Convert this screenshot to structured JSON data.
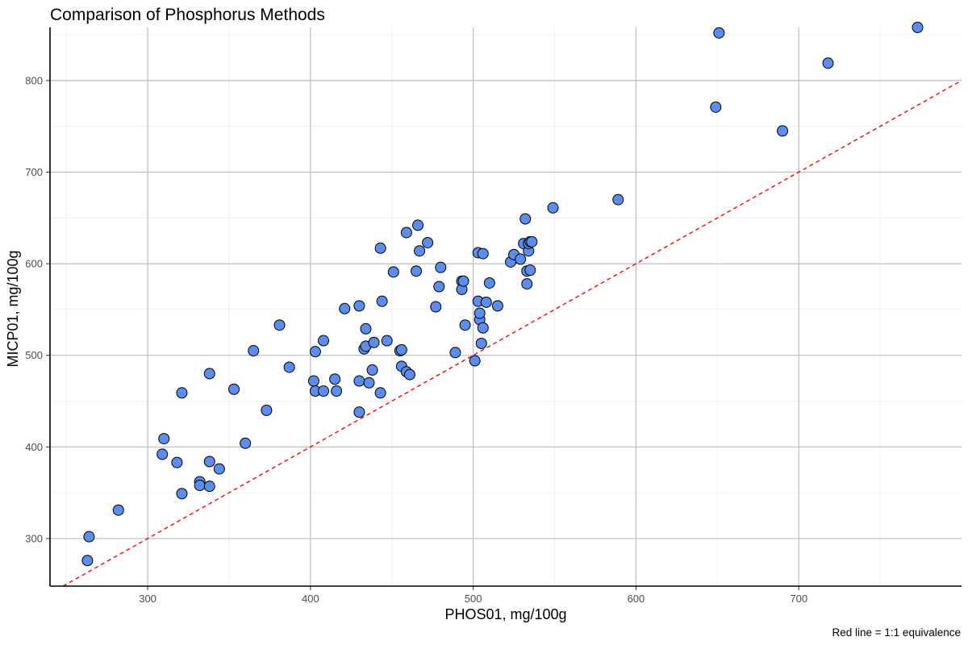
{
  "chart_data": {
    "type": "scatter",
    "title": "Comparison of Phosphorus Methods",
    "xlabel": "PHOS01, mg/100g",
    "ylabel": "MICP01, mg/100g",
    "caption": "Red line = 1:1 equivalence",
    "xlim": [
      240,
      800
    ],
    "ylim": [
      248,
      858
    ],
    "x_major_ticks": [
      300,
      400,
      500,
      600,
      700
    ],
    "y_major_ticks": [
      300,
      400,
      500,
      600,
      700,
      800
    ],
    "grid": true,
    "point_color": "#5b8def",
    "reference_line": {
      "slope": 1,
      "intercept": 0,
      "color": "#ff0000",
      "style": "dashed",
      "label": "Red line = 1:1 equivalence"
    },
    "points": [
      [
        263,
        276
      ],
      [
        264,
        302
      ],
      [
        282,
        331
      ],
      [
        309,
        392
      ],
      [
        310,
        409
      ],
      [
        318,
        383
      ],
      [
        321,
        349
      ],
      [
        321,
        459
      ],
      [
        332,
        362
      ],
      [
        332,
        358
      ],
      [
        338,
        357
      ],
      [
        338,
        384
      ],
      [
        338,
        480
      ],
      [
        344,
        376
      ],
      [
        353,
        463
      ],
      [
        360,
        404
      ],
      [
        365,
        505
      ],
      [
        373,
        440
      ],
      [
        381,
        533
      ],
      [
        387,
        487
      ],
      [
        402,
        472
      ],
      [
        403,
        461
      ],
      [
        403,
        504
      ],
      [
        408,
        516
      ],
      [
        408,
        461
      ],
      [
        415,
        474
      ],
      [
        416,
        461
      ],
      [
        421,
        551
      ],
      [
        430,
        554
      ],
      [
        430,
        472
      ],
      [
        430,
        438
      ],
      [
        433,
        507
      ],
      [
        434,
        529
      ],
      [
        434,
        510
      ],
      [
        436,
        470
      ],
      [
        438,
        484
      ],
      [
        439,
        514
      ],
      [
        443,
        617
      ],
      [
        443,
        459
      ],
      [
        444,
        559
      ],
      [
        447,
        516
      ],
      [
        451,
        591
      ],
      [
        455,
        505
      ],
      [
        456,
        506
      ],
      [
        456,
        488
      ],
      [
        459,
        482
      ],
      [
        459,
        634
      ],
      [
        461,
        479
      ],
      [
        465,
        592
      ],
      [
        466,
        642
      ],
      [
        467,
        614
      ],
      [
        472,
        623
      ],
      [
        477,
        553
      ],
      [
        479,
        575
      ],
      [
        480,
        596
      ],
      [
        489,
        503
      ],
      [
        493,
        581
      ],
      [
        493,
        572
      ],
      [
        494,
        581
      ],
      [
        495,
        533
      ],
      [
        501,
        494
      ],
      [
        503,
        559
      ],
      [
        503,
        612
      ],
      [
        504,
        539
      ],
      [
        504,
        546
      ],
      [
        505,
        513
      ],
      [
        506,
        611
      ],
      [
        506,
        530
      ],
      [
        508,
        558
      ],
      [
        510,
        579
      ],
      [
        515,
        554
      ],
      [
        523,
        602
      ],
      [
        525,
        610
      ],
      [
        529,
        605
      ],
      [
        531,
        622
      ],
      [
        532,
        649
      ],
      [
        533,
        592
      ],
      [
        533,
        578
      ],
      [
        534,
        614
      ],
      [
        534,
        622
      ],
      [
        535,
        624
      ],
      [
        535,
        593
      ],
      [
        536,
        624
      ],
      [
        549,
        661
      ],
      [
        589,
        670
      ],
      [
        649,
        771
      ],
      [
        651,
        852
      ],
      [
        690,
        745
      ],
      [
        718,
        819
      ],
      [
        773,
        858
      ]
    ]
  }
}
